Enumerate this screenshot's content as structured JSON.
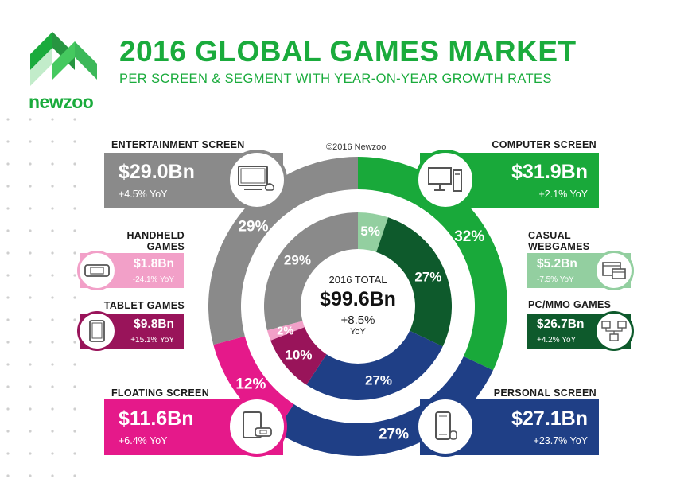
{
  "header": {
    "brand": "newzoo",
    "title": "2016 GLOBAL GAMES MARKET",
    "subtitle": "PER SCREEN & SEGMENT WITH YEAR-ON-YEAR GROWTH RATES",
    "copyright": "©2016 Newzoo"
  },
  "total": {
    "label": "2016 TOTAL",
    "value": "$99.6Bn",
    "yoy": "+8.5%",
    "yoy_unit": "YoY"
  },
  "colors": {
    "brand_green": "#1aab3c",
    "computer": "#19a93a",
    "entertainment": "#8a8a8a",
    "floating": "#e5198a",
    "personal": "#1f3f86",
    "casual": "#93cfa0",
    "pcmmo": "#0e5a2c",
    "handheld": "#f2a0c8",
    "tablet": "#99145a"
  },
  "screens": {
    "entertainment": {
      "label": "ENTERTAINMENT SCREEN",
      "value": "$29.0Bn",
      "yoy": "+4.5% YoY",
      "icon": "tv-icon"
    },
    "computer": {
      "label": "COMPUTER SCREEN",
      "value": "$31.9Bn",
      "yoy": "+2.1% YoY",
      "icon": "desktop-pc-icon"
    },
    "floating": {
      "label": "FLOATING SCREEN",
      "value": "$11.6Bn",
      "yoy": "+6.4% YoY",
      "icon": "tablet-handheld-icon"
    },
    "personal": {
      "label": "PERSONAL SCREEN",
      "value": "$27.1Bn",
      "yoy": "+23.7% YoY",
      "icon": "smartphone-icon"
    }
  },
  "segments": {
    "handheld": {
      "label_line1": "HANDHELD",
      "label_line2": "GAMES",
      "value": "$1.8Bn",
      "yoy": "-24.1% YoY",
      "icon": "handheld-console-icon"
    },
    "tablet": {
      "label": "TABLET GAMES",
      "value": "$9.8Bn",
      "yoy": "+15.1% YoY",
      "icon": "tablet-icon"
    },
    "casual": {
      "label_line1": "CASUAL",
      "label_line2": "WEBGAMES",
      "value": "$5.2Bn",
      "yoy": "-7.5% YoY",
      "icon": "browser-window-icon"
    },
    "pcmmo": {
      "label": "PC/MMO GAMES",
      "value": "$26.7Bn",
      "yoy": "+4.2% YoY",
      "icon": "networked-computers-icon"
    }
  },
  "chart_data": {
    "type": "pie",
    "title": "2016 GLOBAL GAMES MARKET",
    "subtitle": "PER SCREEN & SEGMENT WITH YEAR-ON-YEAR GROWTH RATES",
    "center_text": "2016 TOTAL $99.6Bn +8.5% YoY",
    "outer_ring": [
      {
        "name": "COMPUTER SCREEN",
        "value": 31.9,
        "percent_label": "32%",
        "yoy": "+2.1% YoY",
        "color": "#19a93a"
      },
      {
        "name": "PERSONAL SCREEN",
        "value": 27.1,
        "percent_label": "27%",
        "yoy": "+23.7% YoY",
        "color": "#1f3f86"
      },
      {
        "name": "FLOATING SCREEN",
        "value": 11.6,
        "percent_label": "12%",
        "yoy": "+6.4% YoY",
        "color": "#e5198a"
      },
      {
        "name": "ENTERTAINMENT SCREEN",
        "value": 29.0,
        "percent_label": "29%",
        "yoy": "+4.5% YoY",
        "color": "#8a8a8a"
      }
    ],
    "inner_ring": [
      {
        "name": "CASUAL WEBGAMES",
        "value": 5.2,
        "percent_label": "5%",
        "yoy": "-7.5% YoY",
        "color": "#93cfa0"
      },
      {
        "name": "PC/MMO GAMES",
        "value": 26.7,
        "percent_label": "27%",
        "yoy": "+4.2% YoY",
        "color": "#0e5a2c"
      },
      {
        "name": "PERSONAL SCREEN",
        "value": 27.1,
        "percent_label": "27%",
        "yoy": "+23.7% YoY",
        "color": "#1f3f86"
      },
      {
        "name": "TABLET GAMES",
        "value": 9.8,
        "percent_label": "10%",
        "yoy": "+15.1% YoY",
        "color": "#99145a"
      },
      {
        "name": "HANDHELD GAMES",
        "value": 1.8,
        "percent_label": "2%",
        "yoy": "-24.1% YoY",
        "color": "#f2a0c8"
      },
      {
        "name": "ENTERTAINMENT SCREEN",
        "value": 29.0,
        "percent_label": "29%",
        "yoy": "+4.5% YoY",
        "color": "#8a8a8a"
      }
    ],
    "total": 99.6
  }
}
